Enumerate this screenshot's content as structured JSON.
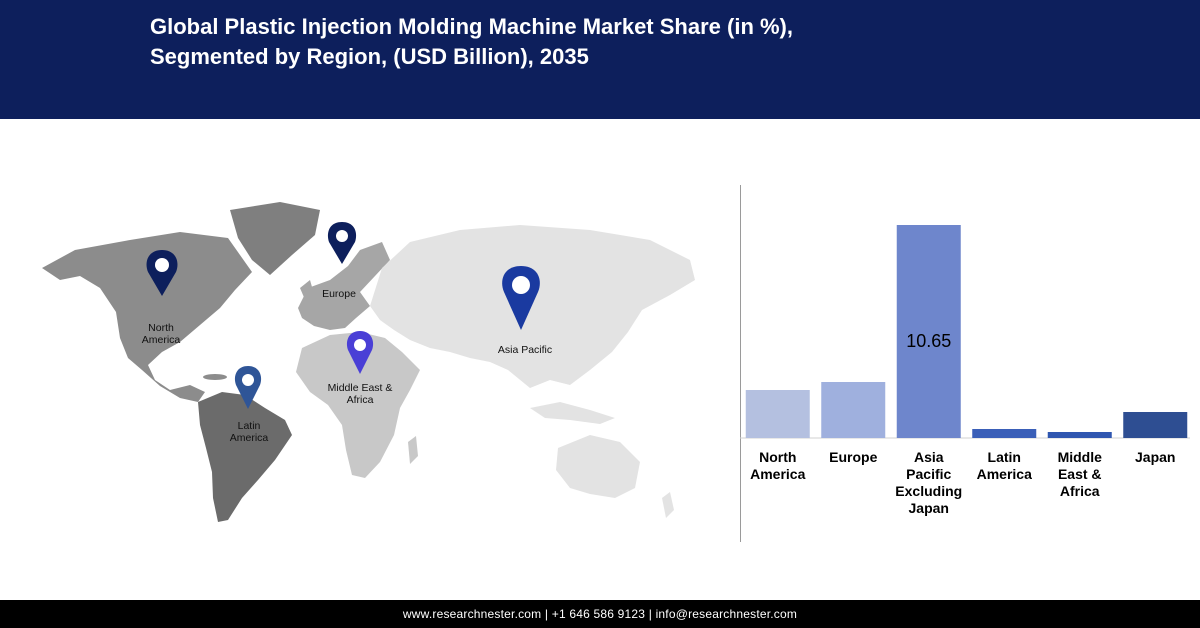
{
  "header": {
    "title_line1": "Global Plastic Injection Molding Machine Market Share (in %),",
    "title_line2": "Segmented by Region, (USD Billion), 2035"
  },
  "map": {
    "pins": [
      {
        "id": "north-america",
        "label_lines": [
          "North",
          "America"
        ],
        "color": "#0d1f5c"
      },
      {
        "id": "europe",
        "label_lines": [
          "Europe"
        ],
        "color": "#0d1f5c"
      },
      {
        "id": "asia-pacific",
        "label_lines": [
          "Asia Pacific"
        ],
        "color": "#1a3aa0"
      },
      {
        "id": "middle-east-africa",
        "label_lines": [
          "Middle East &",
          "Africa"
        ],
        "color": "#4a3fd6"
      },
      {
        "id": "latin-america",
        "label_lines": [
          "Latin",
          "America"
        ],
        "color": "#2f5597"
      }
    ]
  },
  "chart_data": {
    "type": "bar",
    "categories": [
      [
        "North",
        "America"
      ],
      [
        "Europe"
      ],
      [
        "Asia",
        "Pacific",
        "Excluding",
        "Japan"
      ],
      [
        "Latin",
        "America"
      ],
      [
        "Middle",
        "East &",
        "Africa"
      ],
      [
        "Japan"
      ]
    ],
    "values": [
      2.4,
      2.8,
      10.65,
      0.45,
      0.3,
      1.3
    ],
    "data_labels": [
      "",
      "",
      "10.65",
      "",
      "",
      ""
    ],
    "colors": [
      "#b4c0e0",
      "#9fb0de",
      "#6e86cc",
      "#3a5fb8",
      "#2f56b0",
      "#2e4e92"
    ],
    "ylim": [
      0,
      11.5
    ],
    "grid": false
  },
  "footer": {
    "text": "www.researchnester.com | +1 646 586 9123 | info@researchnester.com"
  }
}
